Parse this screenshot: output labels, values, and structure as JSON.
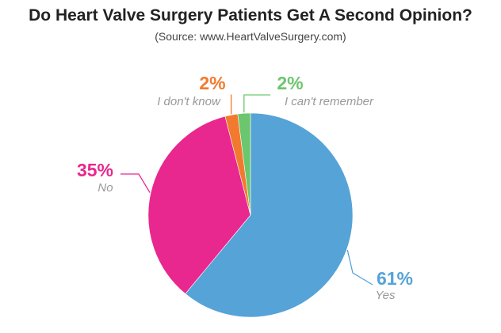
{
  "header": {
    "title": "Do Heart Valve Surgery Patients Get A Second Opinion?",
    "subtitle": "(Source: www.HeartValveSurgery.com)"
  },
  "chart_data": {
    "type": "pie",
    "title": "Do Heart Valve Surgery Patients Get A Second Opinion?",
    "subtitle": "(Source: www.HeartValveSurgery.com)",
    "slices": [
      {
        "label": "Yes",
        "value": 61,
        "display": "61%",
        "color": "#55A3D7"
      },
      {
        "label": "No",
        "value": 35,
        "display": "35%",
        "color": "#E8288E"
      },
      {
        "label": "I don't know",
        "value": 2,
        "display": "2%",
        "color": "#F27A2E"
      },
      {
        "label": "I can't remember",
        "value": 2,
        "display": "2%",
        "color": "#6CC66E"
      }
    ],
    "start_at": "12 o'clock",
    "direction": "clockwise"
  }
}
